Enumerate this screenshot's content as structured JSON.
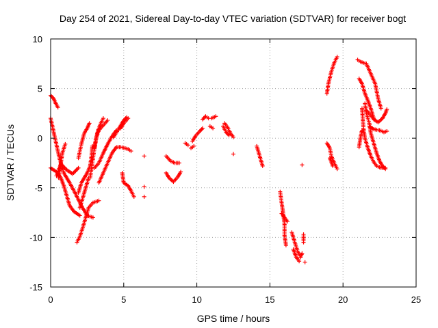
{
  "chart_data": {
    "type": "scatter",
    "title": "Day 254 of 2021, Sidereal Day-to-day VTEC variation (SDTVAR) for receiver bogt",
    "xlabel": "GPS time / hours",
    "ylabel": "SDTVAR / TECUs",
    "xlim": [
      0,
      25
    ],
    "ylim": [
      -15,
      10
    ],
    "xticks": [
      0,
      5,
      10,
      15,
      20,
      25
    ],
    "yticks": [
      -15,
      -10,
      -5,
      0,
      5,
      10
    ],
    "xtick_labels": [
      "0",
      "5",
      "10",
      "15",
      "20",
      "25"
    ],
    "ytick_labels": [
      "-15",
      "-10",
      "-5",
      "0",
      "5",
      "10"
    ],
    "grid": true,
    "marker": "+",
    "color": "#ff0000",
    "segments": [
      [
        [
          0.0,
          4.3
        ],
        [
          0.2,
          4.0
        ],
        [
          0.35,
          3.5
        ],
        [
          0.5,
          3.1
        ]
      ],
      [
        [
          0.0,
          2.0
        ],
        [
          0.3,
          0.0
        ],
        [
          0.6,
          -2.0
        ],
        [
          0.9,
          -3.5
        ],
        [
          1.3,
          -4.5
        ],
        [
          1.7,
          -5.6
        ],
        [
          2.1,
          -6.8
        ],
        [
          2.5,
          -7.8
        ],
        [
          2.9,
          -8.0
        ]
      ],
      [
        [
          0.0,
          -3.0
        ],
        [
          0.4,
          -3.4
        ],
        [
          0.7,
          -4.0
        ],
        [
          0.9,
          -4.8
        ],
        [
          1.1,
          -5.8
        ],
        [
          1.3,
          -6.8
        ],
        [
          1.6,
          -7.4
        ],
        [
          2.0,
          -7.8
        ]
      ],
      [
        [
          0.4,
          -3.8
        ],
        [
          0.7,
          -2.6
        ],
        [
          1.1,
          -3.2
        ],
        [
          1.5,
          -3.6
        ],
        [
          1.9,
          -3.0
        ]
      ],
      [
        [
          0.55,
          -4.0
        ],
        [
          0.8,
          -1.5
        ],
        [
          1.0,
          -0.6
        ]
      ],
      [
        [
          1.8,
          -10.5
        ],
        [
          2.0,
          -9.9
        ],
        [
          2.2,
          -9.0
        ],
        [
          2.4,
          -8.0
        ],
        [
          2.6,
          -7.0
        ],
        [
          2.9,
          -6.5
        ],
        [
          3.3,
          -6.3
        ]
      ],
      [
        [
          1.9,
          -2.0
        ],
        [
          2.1,
          -0.6
        ],
        [
          2.3,
          0.5
        ],
        [
          2.5,
          1.0
        ],
        [
          2.65,
          1.5
        ]
      ],
      [
        [
          1.9,
          -5.5
        ],
        [
          2.1,
          -4.5
        ],
        [
          2.3,
          -4.0
        ],
        [
          2.5,
          -3.5
        ],
        [
          2.7,
          -2.8
        ],
        [
          2.8,
          -1.8
        ],
        [
          2.85,
          -0.8
        ]
      ],
      [
        [
          2.0,
          -7.0
        ],
        [
          2.2,
          -6.0
        ],
        [
          2.4,
          -5.0
        ],
        [
          2.6,
          -4.0
        ]
      ],
      [
        [
          2.7,
          -4.0
        ],
        [
          2.9,
          -2.0
        ],
        [
          3.1,
          0.0
        ],
        [
          3.3,
          0.8
        ],
        [
          3.6,
          1.3
        ],
        [
          3.9,
          1.8
        ]
      ],
      [
        [
          3.0,
          -3.0
        ],
        [
          3.3,
          -2.5
        ],
        [
          3.6,
          -1.5
        ],
        [
          3.9,
          -0.6
        ],
        [
          4.2,
          0.2
        ],
        [
          4.5,
          0.8
        ]
      ],
      [
        [
          3.0,
          -1.0
        ],
        [
          3.2,
          0.6
        ],
        [
          3.4,
          1.4
        ],
        [
          3.6,
          2.0
        ]
      ],
      [
        [
          3.3,
          -4.5
        ],
        [
          3.6,
          -3.5
        ],
        [
          3.9,
          -2.5
        ],
        [
          4.2,
          -1.5
        ],
        [
          4.5,
          -0.9
        ],
        [
          4.8,
          -0.9
        ],
        [
          5.3,
          -1.1
        ],
        [
          5.5,
          -1.3
        ]
      ],
      [
        [
          4.3,
          0.1
        ],
        [
          4.6,
          0.8
        ],
        [
          4.8,
          1.3
        ],
        [
          5.0,
          1.8
        ],
        [
          5.2,
          2.1
        ]
      ],
      [
        [
          4.8,
          1.0
        ],
        [
          5.0,
          1.5
        ],
        [
          5.3,
          2.0
        ]
      ],
      [
        [
          4.9,
          -3.5
        ],
        [
          5.0,
          -4.5
        ],
        [
          5.3,
          -4.8
        ],
        [
          5.5,
          -5.3
        ],
        [
          5.7,
          -5.9
        ]
      ],
      [
        [
          6.4,
          -1.8
        ]
      ],
      [
        [
          6.4,
          -4.9
        ]
      ],
      [
        [
          6.4,
          -5.9
        ]
      ],
      [
        [
          7.9,
          -1.8
        ],
        [
          8.2,
          -2.3
        ],
        [
          8.5,
          -2.5
        ],
        [
          8.8,
          -2.5
        ]
      ],
      [
        [
          7.9,
          -3.5
        ],
        [
          8.1,
          -4.0
        ],
        [
          8.4,
          -4.4
        ],
        [
          8.7,
          -3.9
        ],
        [
          8.9,
          -3.4
        ]
      ],
      [
        [
          9.2,
          -0.5
        ],
        [
          9.4,
          -0.7
        ]
      ],
      [
        [
          9.6,
          -1.0
        ],
        [
          9.8,
          -0.8
        ]
      ],
      [
        [
          9.7,
          -0.3
        ],
        [
          9.9,
          0.2
        ],
        [
          10.2,
          0.7
        ],
        [
          10.4,
          1.0
        ]
      ],
      [
        [
          10.4,
          1.9
        ],
        [
          10.6,
          2.2
        ],
        [
          10.8,
          2.0
        ]
      ],
      [
        [
          10.9,
          1.2
        ],
        [
          11.1,
          1.0
        ]
      ],
      [
        [
          11.0,
          2.0
        ],
        [
          11.3,
          2.2
        ]
      ],
      [
        [
          11.9,
          1.5
        ],
        [
          12.1,
          1.1
        ],
        [
          12.3,
          0.5
        ],
        [
          12.5,
          0.1
        ]
      ],
      [
        [
          11.8,
          1.2
        ],
        [
          12.0,
          0.6
        ],
        [
          12.2,
          0.3
        ]
      ],
      [
        [
          12.5,
          -1.6
        ]
      ],
      [
        [
          14.1,
          -0.8
        ],
        [
          14.3,
          -1.8
        ],
        [
          14.5,
          -2.8
        ]
      ],
      [
        [
          15.7,
          -5.4
        ],
        [
          15.8,
          -6.5
        ],
        [
          15.9,
          -7.5
        ],
        [
          16.0,
          -8.7
        ],
        [
          16.0,
          -9.8
        ],
        [
          16.1,
          -10.8
        ]
      ],
      [
        [
          15.8,
          -7.6
        ],
        [
          16.0,
          -8.0
        ],
        [
          16.2,
          -8.4
        ]
      ],
      [
        [
          16.5,
          -9.5
        ],
        [
          16.7,
          -10.5
        ],
        [
          16.9,
          -11.4
        ],
        [
          17.1,
          -12.0
        ],
        [
          17.2,
          -11.6
        ]
      ],
      [
        [
          16.6,
          -11.2
        ],
        [
          16.8,
          -12.0
        ],
        [
          17.0,
          -12.4
        ]
      ],
      [
        [
          17.3,
          -9.7
        ],
        [
          17.3,
          -10.5
        ]
      ],
      [
        [
          17.4,
          -12.5
        ]
      ],
      [
        [
          17.2,
          -2.7
        ]
      ],
      [
        [
          18.9,
          4.5
        ],
        [
          19.0,
          5.5
        ],
        [
          19.2,
          6.7
        ],
        [
          19.4,
          7.6
        ],
        [
          19.6,
          8.2
        ]
      ],
      [
        [
          18.9,
          -0.5
        ],
        [
          19.1,
          -1.0
        ],
        [
          19.2,
          -1.8
        ],
        [
          19.4,
          -2.5
        ],
        [
          19.6,
          -3.1
        ]
      ],
      [
        [
          19.1,
          -2.0
        ],
        [
          19.3,
          -2.8
        ]
      ],
      [
        [
          21.0,
          7.9
        ],
        [
          21.2,
          7.7
        ],
        [
          21.6,
          7.5
        ],
        [
          21.9,
          6.5
        ],
        [
          22.2,
          5.5
        ],
        [
          22.4,
          4.0
        ],
        [
          22.6,
          3.0
        ]
      ],
      [
        [
          21.1,
          6.0
        ],
        [
          21.3,
          5.5
        ],
        [
          21.5,
          4.5
        ],
        [
          21.7,
          3.8
        ],
        [
          21.9,
          3.0
        ],
        [
          22.1,
          2.0
        ]
      ],
      [
        [
          21.3,
          3.0
        ],
        [
          21.4,
          1.0
        ],
        [
          21.5,
          0.0
        ],
        [
          21.7,
          -1.0
        ],
        [
          21.9,
          -1.8
        ],
        [
          22.1,
          -2.4
        ],
        [
          22.3,
          -2.8
        ],
        [
          22.6,
          -3.0
        ],
        [
          22.9,
          -3.0
        ]
      ],
      [
        [
          21.5,
          3.5
        ],
        [
          21.6,
          2.5
        ],
        [
          21.7,
          2.0
        ],
        [
          21.8,
          1.5
        ],
        [
          21.9,
          0.5
        ],
        [
          22.1,
          -0.5
        ],
        [
          22.3,
          -1.5
        ],
        [
          22.5,
          -2.3
        ],
        [
          22.7,
          -2.8
        ],
        [
          22.9,
          -3.1
        ]
      ],
      [
        [
          21.6,
          2.8
        ],
        [
          21.9,
          2.3
        ],
        [
          22.1,
          1.9
        ],
        [
          22.4,
          1.6
        ],
        [
          22.7,
          2.0
        ],
        [
          22.9,
          2.5
        ],
        [
          23.0,
          2.9
        ]
      ],
      [
        [
          21.8,
          1.2
        ],
        [
          22.1,
          0.9
        ],
        [
          22.5,
          0.8
        ],
        [
          22.8,
          0.6
        ],
        [
          23.0,
          0.7
        ]
      ],
      [
        [
          21.1,
          -0.9
        ],
        [
          21.2,
          0.1
        ],
        [
          21.3,
          0.8
        ]
      ]
    ]
  }
}
